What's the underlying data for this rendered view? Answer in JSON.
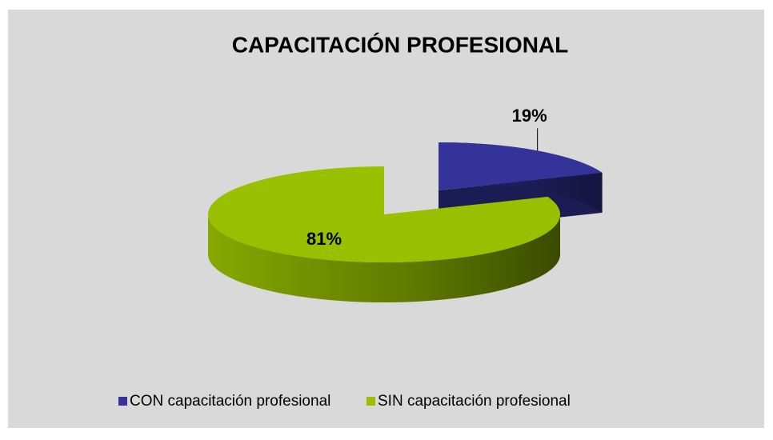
{
  "chart_data": {
    "type": "pie",
    "title": "CAPACITACIÓN PROFESIONAL",
    "categories": [
      "CON capacitación profesional",
      "SIN capacitación profesional"
    ],
    "values": [
      19,
      81
    ],
    "value_labels": [
      "19%",
      "81%"
    ],
    "colors": [
      "#33339a",
      "#99c000"
    ],
    "legend": "bottom"
  }
}
